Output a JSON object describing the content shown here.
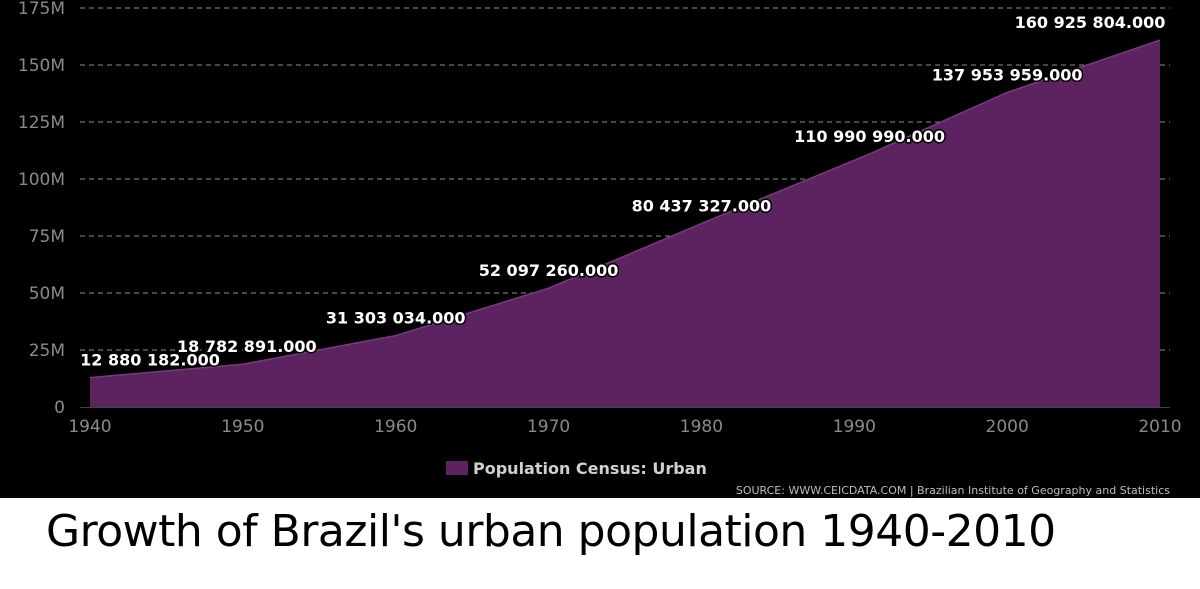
{
  "caption": "Growth of Brazil's urban population 1940-2010",
  "chart_data": {
    "type": "area",
    "x": [
      1940,
      1950,
      1960,
      1970,
      1980,
      1991,
      2000,
      2010
    ],
    "series": [
      {
        "name": "Population Census: Urban",
        "color": "#5c2360",
        "values": [
          12880182,
          18782891,
          31303034,
          52097260,
          80437327,
          110990990,
          137953959,
          160925804
        ]
      }
    ],
    "data_labels": [
      "12 880 182.000",
      "18 782 891.000",
      "31 303 034.000",
      "52 097 260.000",
      "80 437 327.000",
      "110 990 990.000",
      "137 953 959.000",
      "160 925 804.000"
    ],
    "xlim": [
      1940,
      2010
    ],
    "ylim": [
      0,
      175000000
    ],
    "x_ticks": [
      "1940",
      "1950",
      "1960",
      "1970",
      "1980",
      "1990",
      "2000",
      "2010"
    ],
    "y_ticks": [
      "0",
      "25M",
      "50M",
      "75M",
      "100M",
      "125M",
      "150M",
      "175M"
    ],
    "grid": "horizontal dashed",
    "legend_position": "bottom-center",
    "source": "SOURCE: WWW.CEICDATA.COM | Brazilian Institute of Geography and Statistics"
  }
}
